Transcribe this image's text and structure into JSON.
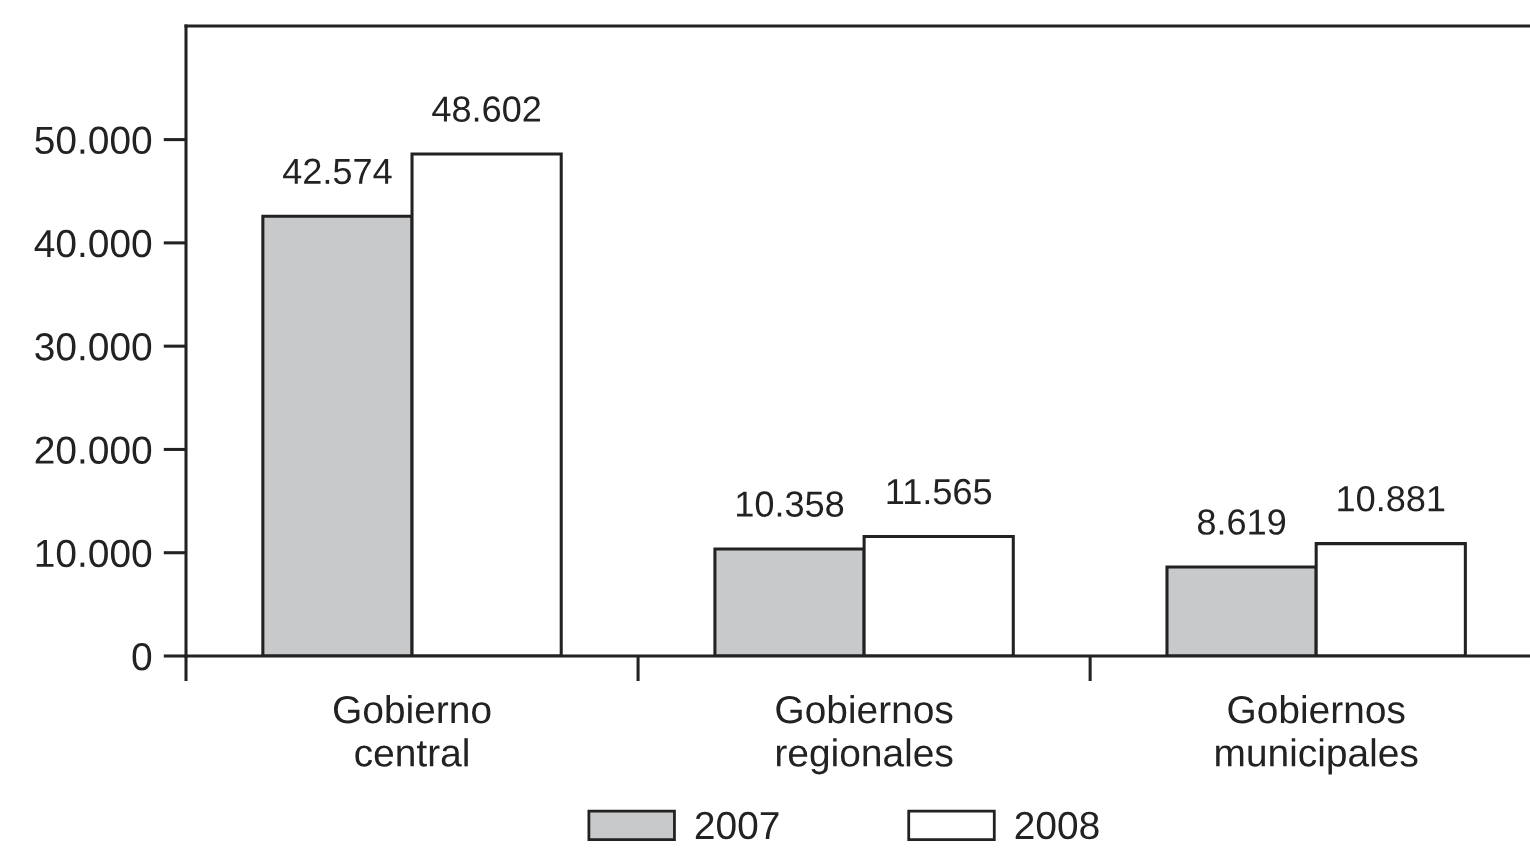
{
  "chart_data": {
    "type": "bar",
    "categories": [
      "Gobierno\ncentral",
      "Gobiernos\nregionales",
      "Gobiernos\nmunicipales"
    ],
    "series": [
      {
        "name": "2007",
        "color": "#c8c9cb",
        "values": [
          42574,
          10358,
          8619
        ],
        "value_labels": [
          "42.574",
          "10.358",
          "8.619"
        ]
      },
      {
        "name": "2008",
        "color": "#ffffff",
        "values": [
          48602,
          11565,
          10881
        ],
        "value_labels": [
          "48.602",
          "11.565",
          "10.881"
        ]
      }
    ],
    "ylim": [
      0,
      61000
    ],
    "yticks": [
      0,
      {
        "value": 10000,
        "label": "10.000"
      },
      {
        "value": 20000,
        "label": "20.000"
      },
      {
        "value": 30000,
        "label": "30.000"
      },
      {
        "value": 40000,
        "label": "40.000"
      },
      {
        "value": 50000,
        "label": "50.000"
      }
    ],
    "legend": "bottom",
    "grid": false
  }
}
